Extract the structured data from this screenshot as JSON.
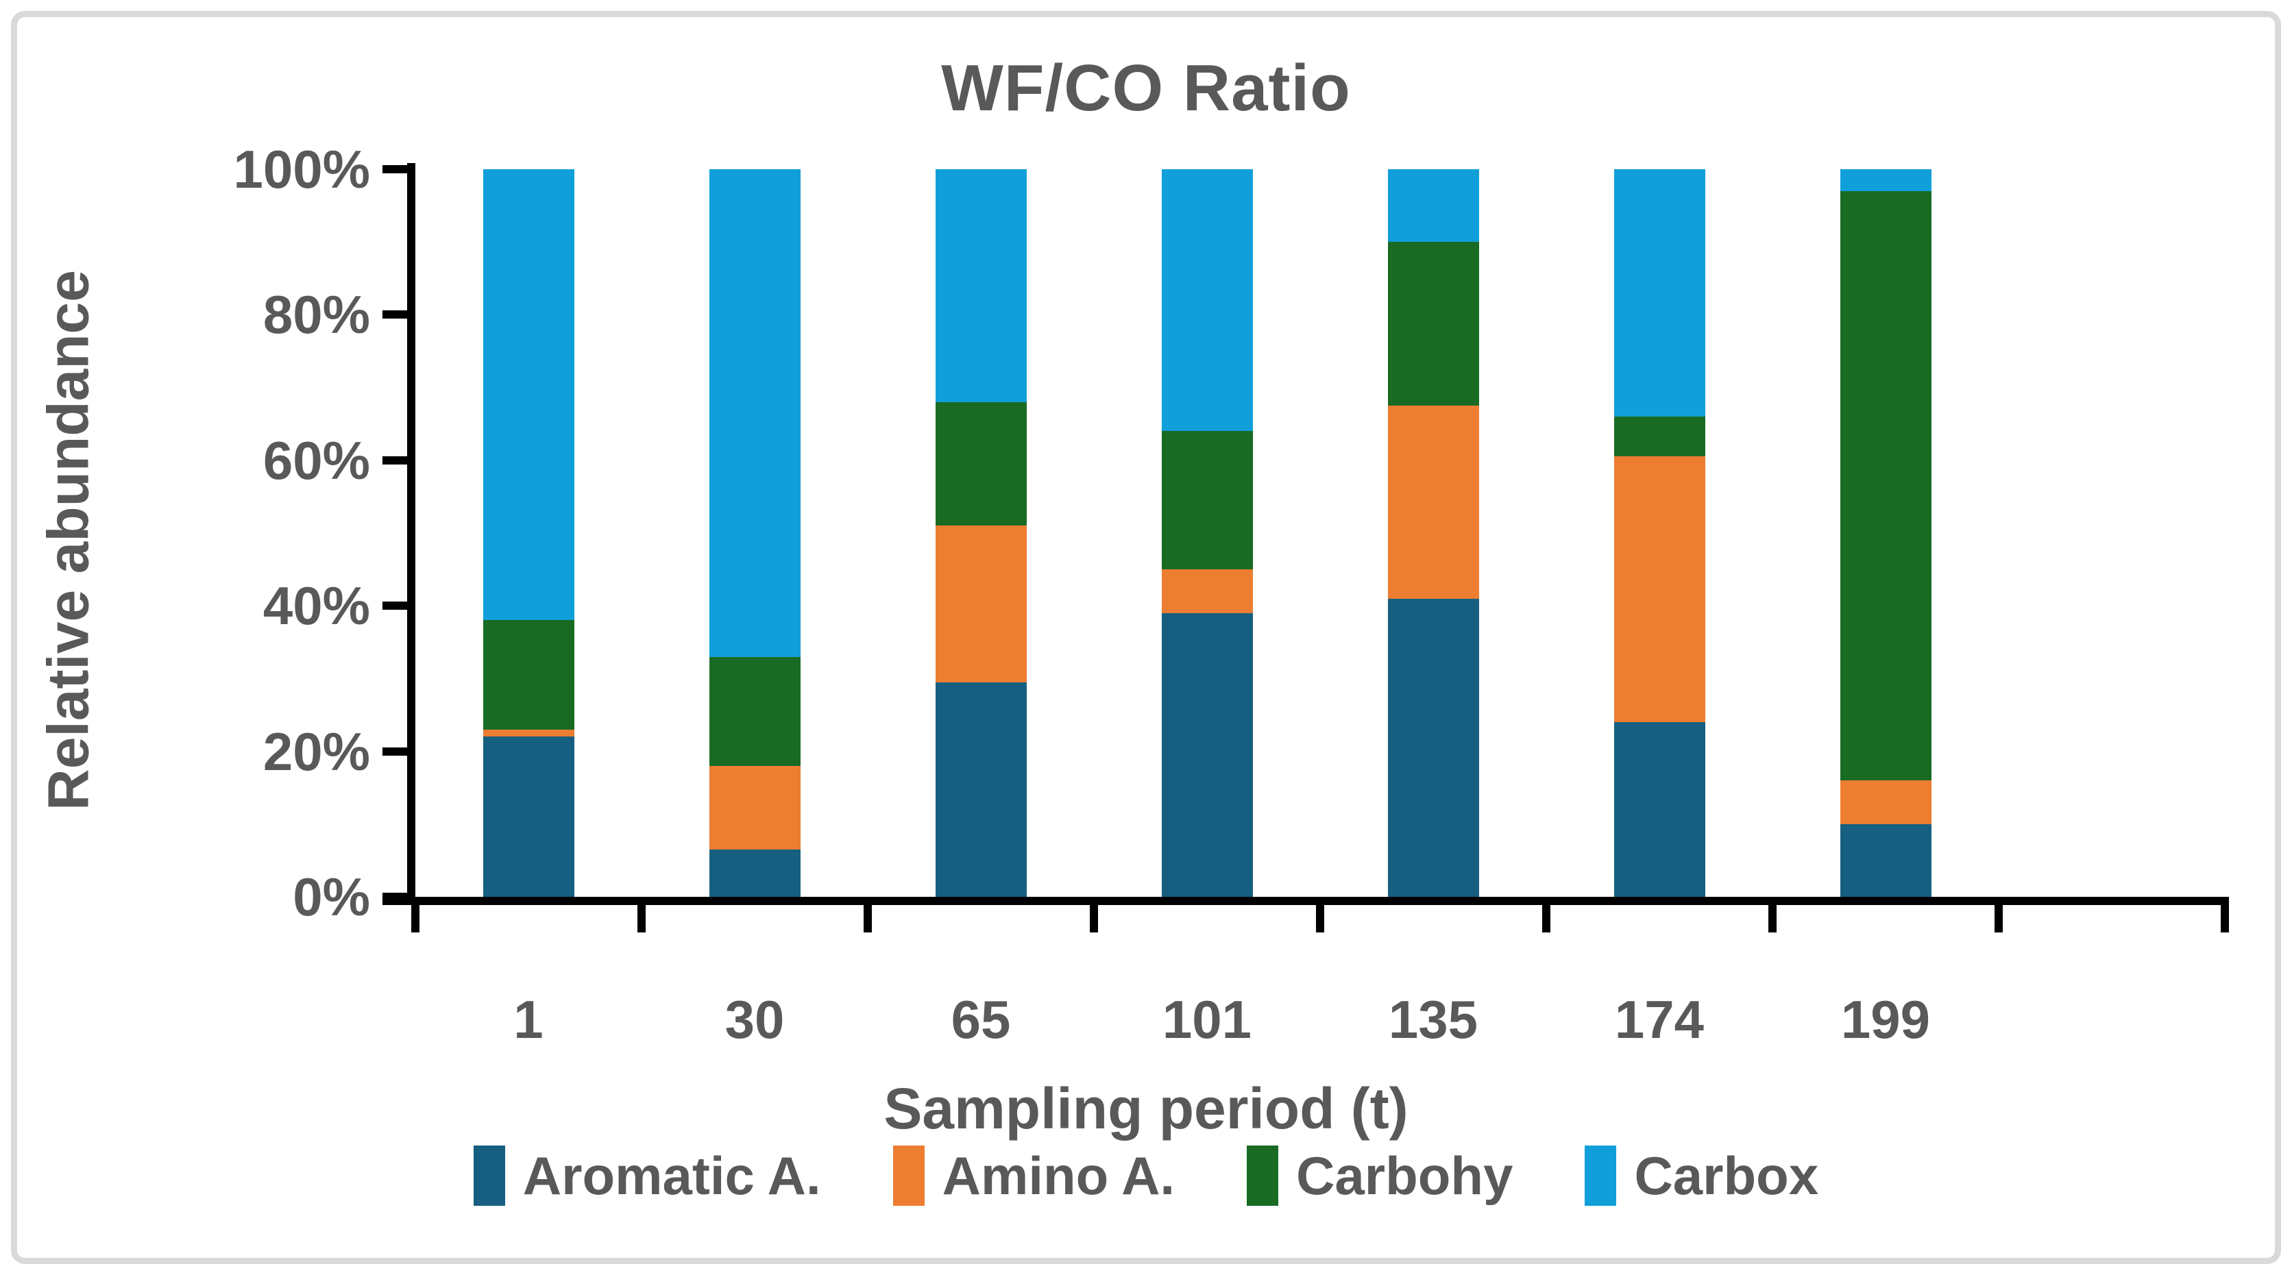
{
  "colors": {
    "background": "#FFFFFF",
    "frame_border": "#D9D9D9",
    "text": "#595959",
    "axis": "#000000",
    "aromatic": "#165F80",
    "amino": "#ED7D31",
    "carbohy": "#196B24",
    "carbox": "#119FDA"
  },
  "chart_data": {
    "type": "bar",
    "stacked": true,
    "title": "WF/CO Ratio",
    "xlabel": "Sampling period (t)",
    "ylabel": "Relative abundance",
    "categories": [
      "1",
      "30",
      "65",
      "101",
      "135",
      "174",
      "199"
    ],
    "series": [
      {
        "name": "Aromatic A.",
        "color": "#165F80",
        "values": [
          22,
          6.5,
          29.5,
          39,
          41,
          24,
          10
        ]
      },
      {
        "name": "Amino A.",
        "color": "#ED7D31",
        "values": [
          1,
          11.5,
          21.5,
          6,
          26.5,
          36.5,
          6
        ]
      },
      {
        "name": "Carbohy",
        "color": "#196B24",
        "values": [
          15,
          15,
          17,
          19,
          22.5,
          5.5,
          81
        ]
      },
      {
        "name": "Carbox",
        "color": "#119FDA",
        "values": [
          62,
          67,
          32,
          36,
          10,
          34,
          3
        ]
      }
    ],
    "ylim": [
      0,
      100
    ],
    "y_tick_labels": [
      "0%",
      "20%",
      "40%",
      "60%",
      "80%",
      "100%"
    ],
    "y_tick_step": 20,
    "units": "percent",
    "grid": false,
    "legend_position": "bottom",
    "legend_entries": [
      "Aromatic A.",
      "Amino A.",
      "Carbohy",
      "Carbox"
    ]
  }
}
